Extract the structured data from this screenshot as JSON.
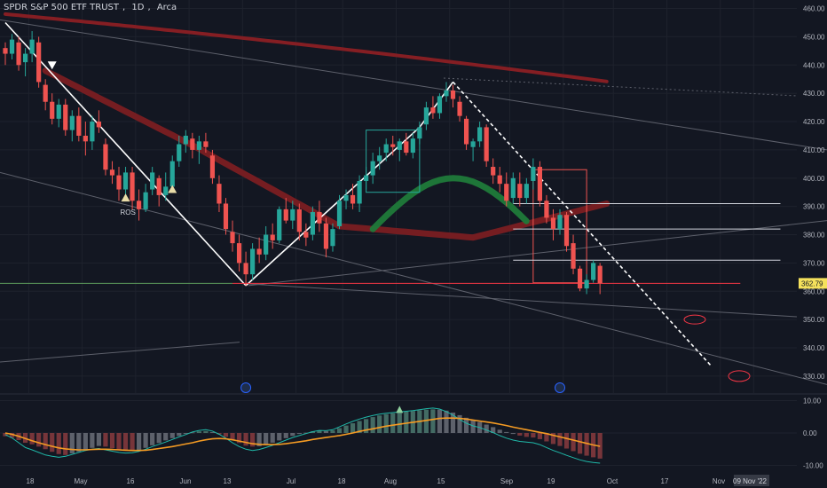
{
  "header": {
    "symbol_name": "SPDR S&P 500 ETF TRUST",
    "interval": "1D",
    "exchange": "Arca"
  },
  "colors": {
    "background": "#131722",
    "up": "#26a69a",
    "down": "#ef5350",
    "grid": "#1e222d",
    "trendline_white": "#ffffff",
    "support_line": "#f23645",
    "ma_long_red": "#8b1f24",
    "ma_green": "#1f7a3a",
    "macd_line": "#1fb8a8",
    "signal_line": "#f59b23",
    "label_bg": "#f5e15c"
  },
  "chart_data": [
    {
      "type": "candlestick",
      "symbol": "SPDR S&P 500 ETF TRUST",
      "timeframe": "1D",
      "y_axis_ticks": [
        460.0,
        450.0,
        440.0,
        430.0,
        420.0,
        410.0,
        400.0,
        390.0,
        380.0,
        370.0,
        360.0,
        350.0,
        340.0,
        330.0
      ],
      "ylim": [
        324,
        463
      ],
      "x_axis_labels": [
        "18",
        "May",
        "16",
        "Jun",
        "13",
        "Jul",
        "18",
        "Aug",
        "15",
        "Sep",
        "19",
        "Oct",
        "17",
        "Nov",
        "09 Nov '22"
      ],
      "last_price_label": "362.79",
      "annotations": [
        "ROS"
      ],
      "series": [
        {
          "name": "price",
          "ohlc": [
            [
              446,
              448,
              440,
              444
            ],
            [
              444,
              451,
              442,
              449
            ],
            [
              448,
              450,
              438,
              440
            ],
            [
              441,
              446,
              436,
              444
            ],
            [
              444,
              452,
              441,
              449
            ],
            [
              448,
              450,
              432,
              434
            ],
            [
              433,
              435,
              424,
              427
            ],
            [
              427,
              430,
              419,
              421
            ],
            [
              421,
              428,
              418,
              426
            ],
            [
              426,
              428,
              415,
              417
            ],
            [
              417,
              424,
              413,
              422
            ],
            [
              422,
              425,
              413,
              415
            ],
            [
              415,
              420,
              408,
              413
            ],
            [
              413,
              422,
              410,
              420
            ],
            [
              420,
              424,
              416,
              418
            ],
            [
              412,
              414,
              401,
              403
            ],
            [
              403,
              406,
              398,
              401
            ],
            [
              401,
              404,
              392,
              396
            ],
            [
              396,
              404,
              394,
              402
            ],
            [
              402,
              404,
              389,
              392
            ],
            [
              392,
              396,
              385,
              389
            ],
            [
              389,
              398,
              388,
              395
            ],
            [
              396,
              404,
              394,
              402
            ],
            [
              400,
              401,
              390,
              394
            ],
            [
              394,
              402,
              392,
              397
            ],
            [
              397,
              408,
              396,
              406
            ],
            [
              406,
              415,
              404,
              412
            ],
            [
              412,
              417,
              409,
              415
            ],
            [
              414,
              416,
              407,
              410
            ],
            [
              410,
              415,
              405,
              413
            ],
            [
              413,
              416,
              409,
              411
            ],
            [
              408,
              410,
              398,
              400
            ],
            [
              398,
              401,
              388,
              391
            ],
            [
              391,
              393,
              380,
              382
            ],
            [
              381,
              385,
              374,
              377
            ],
            [
              377,
              380,
              367,
              370
            ],
            [
              370,
              374,
              362,
              366
            ],
            [
              366,
              377,
              364,
              375
            ],
            [
              375,
              379,
              370,
              373
            ],
            [
              373,
              383,
              371,
              380
            ],
            [
              380,
              384,
              375,
              378
            ],
            [
              378,
              390,
              377,
              389
            ],
            [
              389,
              393,
              384,
              385
            ],
            [
              385,
              392,
              382,
              389
            ],
            [
              389,
              391,
              378,
              381
            ],
            [
              381,
              384,
              376,
              379
            ],
            [
              380,
              390,
              378,
              388
            ],
            [
              388,
              392,
              381,
              384
            ],
            [
              384,
              386,
              372,
              375
            ],
            [
              376,
              384,
              374,
              382
            ],
            [
              383,
              394,
              382,
              392
            ],
            [
              392,
              396,
              389,
              394
            ],
            [
              394,
              398,
              389,
              391
            ],
            [
              391,
              401,
              388,
              399
            ],
            [
              399,
              404,
              396,
              401
            ],
            [
              401,
              409,
              398,
              406
            ],
            [
              406,
              411,
              403,
              408
            ],
            [
              409,
              414,
              406,
              412
            ],
            [
              412,
              415,
              408,
              411
            ],
            [
              410,
              414,
              406,
              413
            ],
            [
              413,
              416,
              408,
              409
            ],
            [
              409,
              416,
              407,
              414
            ],
            [
              414,
              420,
              412,
              418
            ],
            [
              419,
              427,
              417,
              425
            ],
            [
              425,
              429,
              421,
              423
            ],
            [
              423,
              430,
              421,
              429
            ],
            [
              429,
              434,
              427,
              431
            ],
            [
              431,
              433,
              425,
              428
            ],
            [
              427,
              429,
              420,
              422
            ],
            [
              421,
              422,
              410,
              412
            ],
            [
              411,
              414,
              406,
              413
            ],
            [
              413,
              420,
              411,
              418
            ],
            [
              418,
              419,
              404,
              406
            ],
            [
              404,
              407,
              398,
              401
            ],
            [
              401,
              404,
              395,
              398
            ],
            [
              398,
              402,
              390,
              392
            ],
            [
              393,
              402,
              391,
              400
            ],
            [
              398,
              402,
              390,
              393
            ],
            [
              393,
              400,
              391,
              398
            ],
            [
              399,
              407,
              396,
              404
            ],
            [
              404,
              406,
              390,
              392
            ],
            [
              392,
              394,
              384,
              386
            ],
            [
              386,
              389,
              378,
              382
            ],
            [
              382,
              389,
              380,
              387
            ],
            [
              387,
              388,
              374,
              376
            ],
            [
              377,
              380,
              366,
              368
            ],
            [
              368,
              369,
              360,
              361
            ],
            [
              361,
              366,
              359,
              364
            ],
            [
              364,
              371,
              363,
              370
            ],
            [
              369,
              370,
              359,
              362.79
            ]
          ]
        },
        {
          "name": "MACD histogram",
          "values": [
            -1,
            -1.5,
            -2.2,
            -3,
            -3.5,
            -4.2,
            -5,
            -5.8,
            -6.5,
            -6.8,
            -6.3,
            -5.8,
            -5.2,
            -4.6,
            -4,
            -4.2,
            -4.7,
            -5.2,
            -5.5,
            -5.6,
            -5.2,
            -4.6,
            -3.8,
            -3.1,
            -2.3,
            -1.6,
            -0.9,
            -0.3,
            0.2,
            0.5,
            0.6,
            0.3,
            -0.4,
            -1.2,
            -2.2,
            -3.1,
            -3.9,
            -4.2,
            -4.1,
            -3.6,
            -3,
            -2.3,
            -1.6,
            -0.9,
            -0.3,
            0.1,
            0.5,
            0.7,
            0.6,
            0.8,
            1.5,
            2.3,
            3,
            3.7,
            4.3,
            4.9,
            5.4,
            5.8,
            6.1,
            6.4,
            6.6,
            6.8,
            7,
            7.2,
            7.3,
            7.2,
            6.9,
            6.3,
            5.5,
            4.7,
            4,
            3.4,
            2.6,
            1.8,
            1,
            0.3,
            -0.3,
            -0.8,
            -1.2,
            -1.4,
            -1.9,
            -2.6,
            -3.4,
            -4,
            -4.8,
            -5.6,
            -6.4,
            -7,
            -7.5,
            -7.9
          ]
        },
        {
          "name": "MACD line",
          "values": [
            -0.5,
            -1.5,
            -3,
            -4.5,
            -5.2,
            -6,
            -6.8,
            -7.2,
            -7.5,
            -7.2,
            -6.6,
            -6,
            -5.4,
            -5,
            -4.8,
            -5.2,
            -5.6,
            -6,
            -6.2,
            -6.1,
            -5.7,
            -5,
            -4.2,
            -3.5,
            -2.8,
            -2,
            -1.2,
            -0.5,
            0.3,
            0.8,
            1,
            0.6,
            -0.4,
            -1.6,
            -3,
            -4.2,
            -5,
            -5.4,
            -5.1,
            -4.5,
            -3.8,
            -3,
            -2.2,
            -1.4,
            -0.8,
            -0.2,
            0.4,
            0.8,
            0.7,
            1,
            1.9,
            2.8,
            3.6,
            4.3,
            4.9,
            5.4,
            5.8,
            6.1,
            6.3,
            6.5,
            6.7,
            6.9,
            7.2,
            7.5,
            7.7,
            7.4,
            6.6,
            5.5,
            4.2,
            3,
            2.2,
            1.7,
            0.9,
            0.1,
            -0.8,
            -1.6,
            -2.2,
            -2.6,
            -2.8,
            -3,
            -3.6,
            -4.5,
            -5.4,
            -6.1,
            -6.9,
            -7.6,
            -8.3,
            -8.8,
            -9.1,
            -9.3
          ]
        },
        {
          "name": "Signal line",
          "values": [
            0,
            -0.4,
            -1,
            -1.7,
            -2.4,
            -3,
            -3.6,
            -4.1,
            -4.6,
            -4.9,
            -5.1,
            -5.2,
            -5.2,
            -5.1,
            -5,
            -5,
            -5.1,
            -5.2,
            -5.3,
            -5.4,
            -5.4,
            -5.3,
            -5.1,
            -4.8,
            -4.5,
            -4.2,
            -3.8,
            -3.4,
            -3,
            -2.5,
            -2.1,
            -1.8,
            -1.7,
            -1.8,
            -2.1,
            -2.5,
            -2.9,
            -3.3,
            -3.5,
            -3.6,
            -3.6,
            -3.5,
            -3.3,
            -3,
            -2.7,
            -2.4,
            -2,
            -1.7,
            -1.4,
            -1.1,
            -0.8,
            -0.4,
            0,
            0.5,
            0.9,
            1.3,
            1.7,
            2.1,
            2.4,
            2.7,
            3,
            3.3,
            3.6,
            3.9,
            4.2,
            4.5,
            4.6,
            4.6,
            4.5,
            4.3,
            4,
            3.7,
            3.4,
            3.1,
            2.7,
            2.3,
            1.8,
            1.4,
            1,
            0.6,
            0.2,
            -0.2,
            -0.7,
            -1.2,
            -1.7,
            -2.2,
            -2.7,
            -3.2,
            -3.7,
            -4.1
          ]
        }
      ],
      "horizontal_levels": [
        362.79,
        391,
        382,
        371
      ],
      "subpanel_ticks": [
        "10.00",
        "0.00",
        "-10.00"
      ],
      "subpanel_ylim": [
        -11.5,
        11.5
      ]
    }
  ]
}
